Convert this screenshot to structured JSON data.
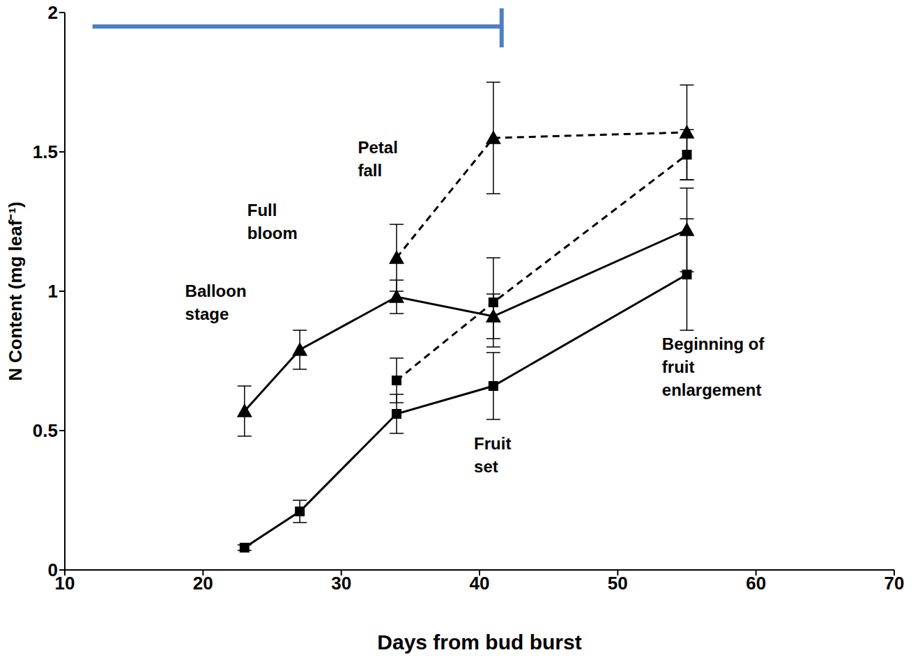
{
  "chart_data": {
    "type": "line",
    "x_label": "Days from bud burst",
    "y_label": "N Content (mg leaf⁻¹)",
    "x": [
      23,
      27,
      34,
      41,
      55
    ],
    "series": [
      {
        "color": "#000000",
        "marker": "triangle",
        "line_style": "solid",
        "values": [
          0.57,
          0.79,
          0.98,
          0.91,
          1.22
        ],
        "errors": [
          0.09,
          0.07,
          0.06,
          0.08,
          0.15
        ]
      },
      {
        "color": "#000000",
        "marker": "square",
        "line_style": "solid",
        "values": [
          0.08,
          0.21,
          0.56,
          0.66,
          1.06
        ],
        "errors": [
          0.01,
          0.04,
          0.07,
          0.12,
          0.2
        ]
      },
      {
        "color": "#000000",
        "marker": "triangle",
        "line_style": "dashed",
        "values": [
          null,
          null,
          1.12,
          1.55,
          1.57
        ],
        "errors": [
          null,
          null,
          0.12,
          0.2,
          0.17
        ]
      },
      {
        "color": "#000000",
        "marker": "square",
        "line_style": "dashed",
        "values": [
          null,
          null,
          0.68,
          0.96,
          1.49
        ],
        "errors": [
          null,
          null,
          0.08,
          0.16,
          0.09
        ]
      }
    ],
    "annotations": [
      {
        "lines": [
          "Balloon",
          "stage"
        ]
      },
      {
        "lines": [
          "Full",
          "bloom"
        ]
      },
      {
        "lines": [
          "Petal",
          "fall"
        ]
      },
      {
        "lines": [
          "Fruit",
          "set"
        ]
      },
      {
        "lines": [
          "Beginning of",
          "fruit",
          "enlargement"
        ]
      }
    ],
    "span": {
      "x": [
        12,
        41.6
      ],
      "y": 1.95,
      "color": "#4f7fbf"
    },
    "xlim": [
      10,
      70
    ],
    "xticks": [
      10,
      20,
      30,
      40,
      50,
      60,
      70
    ],
    "ylim": [
      0,
      2
    ],
    "yticks": [
      0,
      0.5,
      1,
      1.5,
      2
    ],
    "grid": false
  }
}
